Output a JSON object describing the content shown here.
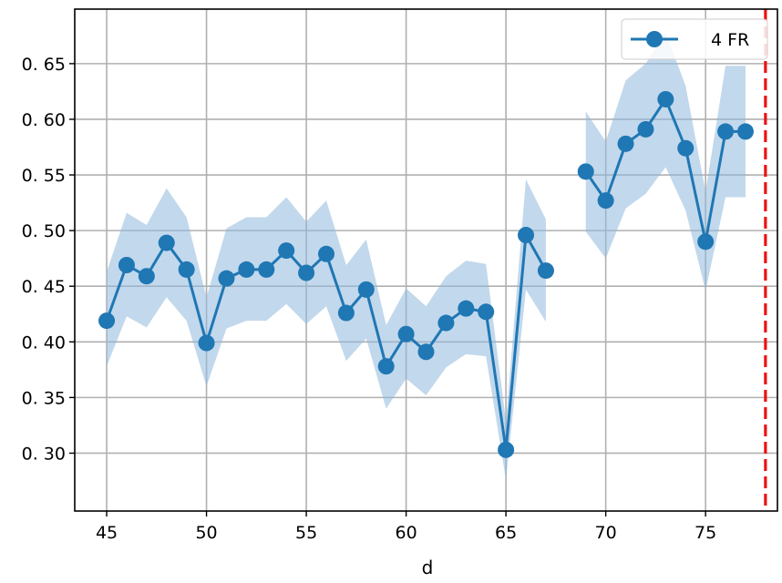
{
  "chart_data": {
    "type": "line",
    "title": "",
    "xlabel": "d",
    "ylabel": "",
    "xlim": [
      43.4,
      78.6
    ],
    "ylim": [
      0.248,
      0.699
    ],
    "x_ticks": [
      45,
      50,
      55,
      60,
      65,
      70,
      75
    ],
    "x_tick_labels": [
      "45",
      "50",
      "55",
      "60",
      "65",
      "70",
      "75"
    ],
    "y_ticks": [
      0.3,
      0.35,
      0.4,
      0.45,
      0.5,
      0.55,
      0.6,
      0.65
    ],
    "y_tick_labels": [
      "0. 30",
      "0. 35",
      "0. 40",
      "0. 45",
      "0. 50",
      "0. 55",
      "0. 60",
      "0. 65"
    ],
    "grid": true,
    "legend_position": "top-right",
    "vline": {
      "x": 78,
      "color": "#ee1111",
      "style": "dashed"
    },
    "series": [
      {
        "name": "4 FR",
        "color": "#1f77b4",
        "band_color": "#8fb8dc",
        "segments": [
          {
            "x": [
              45,
              46,
              47,
              48,
              49,
              50,
              51,
              52,
              53,
              54,
              55,
              56,
              57,
              58,
              59,
              60,
              61,
              62,
              63,
              64,
              65,
              66,
              67
            ],
            "y": [
              0.419,
              0.469,
              0.459,
              0.489,
              0.465,
              0.399,
              0.457,
              0.465,
              0.465,
              0.482,
              0.462,
              0.479,
              0.426,
              0.447,
              0.378,
              0.407,
              0.391,
              0.417,
              0.43,
              0.427,
              0.303,
              0.496,
              0.464
            ],
            "lower": [
              0.378,
              0.423,
              0.413,
              0.44,
              0.419,
              0.36,
              0.412,
              0.419,
              0.419,
              0.434,
              0.416,
              0.432,
              0.383,
              0.403,
              0.34,
              0.367,
              0.352,
              0.377,
              0.389,
              0.387,
              0.276,
              0.447,
              0.418
            ],
            "upper": [
              0.463,
              0.516,
              0.505,
              0.538,
              0.512,
              0.44,
              0.502,
              0.512,
              0.512,
              0.53,
              0.508,
              0.527,
              0.469,
              0.492,
              0.415,
              0.448,
              0.432,
              0.459,
              0.473,
              0.47,
              0.329,
              0.546,
              0.51
            ]
          },
          {
            "x": [
              69,
              70,
              71,
              72,
              73,
              74,
              75,
              76,
              77
            ],
            "y": [
              0.553,
              0.527,
              0.578,
              0.591,
              0.618,
              0.574,
              0.49,
              0.589,
              0.589
            ],
            "lower": [
              0.499,
              0.475,
              0.52,
              0.533,
              0.557,
              0.518,
              0.446,
              0.53,
              0.53
            ],
            "upper": [
              0.607,
              0.58,
              0.635,
              0.65,
              0.678,
              0.63,
              0.535,
              0.648,
              0.648
            ]
          }
        ]
      }
    ]
  }
}
